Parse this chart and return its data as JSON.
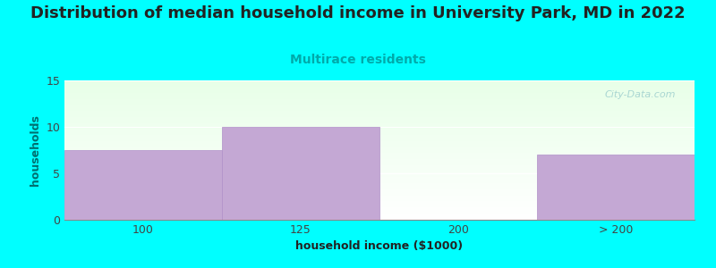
{
  "title": "Distribution of median household income in University Park, MD in 2022",
  "subtitle": "Multirace residents",
  "xlabel": "household income ($1000)",
  "ylabel": "households",
  "title_fontsize": 13,
  "subtitle_fontsize": 10,
  "subtitle_color": "#00AAAA",
  "axis_label_fontsize": 9,
  "background_color": "#00FFFF",
  "bar_color": "#C4A8D4",
  "bar_edge_color": "#B090C8",
  "categories": [
    "100",
    "125",
    "200",
    "> 200"
  ],
  "values": [
    7.5,
    10,
    0,
    7
  ],
  "ylim": [
    0,
    15
  ],
  "yticks": [
    0,
    5,
    10,
    15
  ],
  "watermark": "City-Data.com",
  "plot_bg_top_color": "#E8FFE8",
  "plot_bg_bottom_color": "#FFFFFF"
}
